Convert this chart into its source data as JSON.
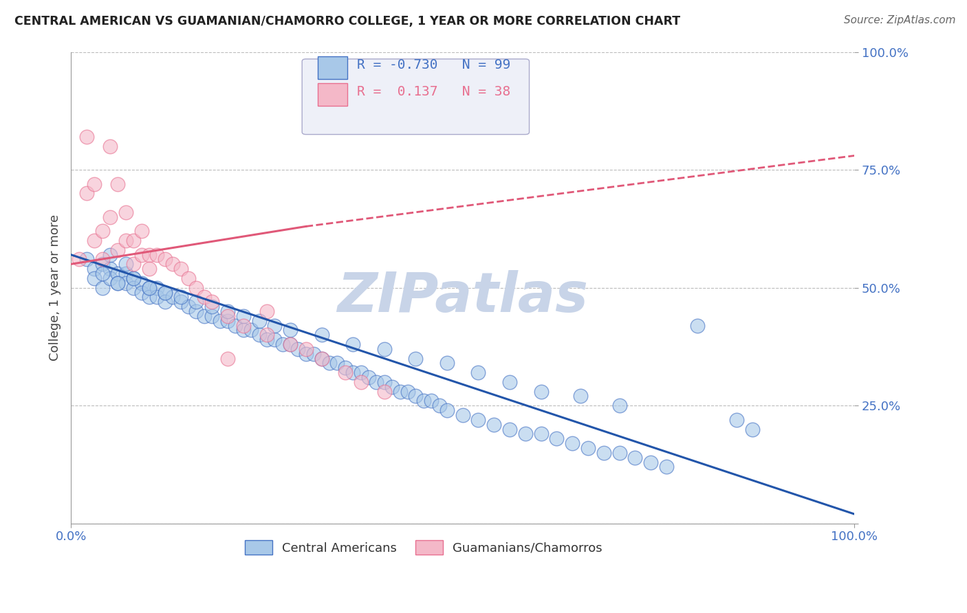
{
  "title": "CENTRAL AMERICAN VS GUAMANIAN/CHAMORRO COLLEGE, 1 YEAR OR MORE CORRELATION CHART",
  "source_text": "Source: ZipAtlas.com",
  "ylabel": "College, 1 year or more",
  "xlim": [
    0.0,
    1.0
  ],
  "ylim": [
    0.0,
    1.0
  ],
  "blue_R": -0.73,
  "blue_N": 99,
  "pink_R": 0.137,
  "pink_N": 38,
  "blue_color": "#a8c8e8",
  "pink_color": "#f4b8c8",
  "blue_edge_color": "#4472c4",
  "pink_edge_color": "#e87090",
  "blue_line_color": "#2255aa",
  "pink_line_color": "#e05878",
  "grid_color": "#bbbbbb",
  "title_color": "#222222",
  "axis_label_color": "#444444",
  "tick_label_color": "#4472c4",
  "watermark_color": "#c8d4e8",
  "legend_border_color": "#aaaacc",
  "legend_bg_color": "#eef0f8",
  "blue_trendline": [
    0.0,
    0.57,
    1.0,
    0.02
  ],
  "pink_solid_line": [
    0.0,
    0.55,
    0.3,
    0.63
  ],
  "pink_dashed_line": [
    0.3,
    0.63,
    1.0,
    0.78
  ],
  "blue_x": [
    0.02,
    0.03,
    0.03,
    0.04,
    0.04,
    0.05,
    0.05,
    0.05,
    0.06,
    0.06,
    0.07,
    0.07,
    0.07,
    0.08,
    0.08,
    0.09,
    0.09,
    0.1,
    0.1,
    0.11,
    0.11,
    0.12,
    0.12,
    0.13,
    0.14,
    0.15,
    0.16,
    0.17,
    0.18,
    0.19,
    0.2,
    0.21,
    0.22,
    0.23,
    0.24,
    0.25,
    0.26,
    0.27,
    0.28,
    0.29,
    0.3,
    0.31,
    0.32,
    0.33,
    0.34,
    0.35,
    0.36,
    0.37,
    0.38,
    0.39,
    0.4,
    0.41,
    0.42,
    0.43,
    0.44,
    0.45,
    0.46,
    0.47,
    0.48,
    0.5,
    0.52,
    0.54,
    0.56,
    0.58,
    0.6,
    0.62,
    0.64,
    0.66,
    0.68,
    0.7,
    0.72,
    0.74,
    0.76,
    0.04,
    0.06,
    0.08,
    0.1,
    0.12,
    0.14,
    0.16,
    0.18,
    0.2,
    0.22,
    0.24,
    0.26,
    0.28,
    0.32,
    0.36,
    0.4,
    0.44,
    0.48,
    0.52,
    0.56,
    0.6,
    0.65,
    0.7,
    0.8,
    0.85,
    0.87
  ],
  "blue_y": [
    0.56,
    0.54,
    0.52,
    0.55,
    0.5,
    0.54,
    0.52,
    0.57,
    0.53,
    0.51,
    0.53,
    0.51,
    0.55,
    0.52,
    0.5,
    0.51,
    0.49,
    0.5,
    0.48,
    0.5,
    0.48,
    0.49,
    0.47,
    0.48,
    0.47,
    0.46,
    0.45,
    0.44,
    0.44,
    0.43,
    0.43,
    0.42,
    0.41,
    0.41,
    0.4,
    0.39,
    0.39,
    0.38,
    0.38,
    0.37,
    0.36,
    0.36,
    0.35,
    0.34,
    0.34,
    0.33,
    0.32,
    0.32,
    0.31,
    0.3,
    0.3,
    0.29,
    0.28,
    0.28,
    0.27,
    0.26,
    0.26,
    0.25,
    0.24,
    0.23,
    0.22,
    0.21,
    0.2,
    0.19,
    0.19,
    0.18,
    0.17,
    0.16,
    0.15,
    0.15,
    0.14,
    0.13,
    0.12,
    0.53,
    0.51,
    0.52,
    0.5,
    0.49,
    0.48,
    0.47,
    0.46,
    0.45,
    0.44,
    0.43,
    0.42,
    0.41,
    0.4,
    0.38,
    0.37,
    0.35,
    0.34,
    0.32,
    0.3,
    0.28,
    0.27,
    0.25,
    0.42,
    0.22,
    0.2
  ],
  "pink_x": [
    0.01,
    0.02,
    0.02,
    0.03,
    0.03,
    0.04,
    0.04,
    0.05,
    0.05,
    0.06,
    0.06,
    0.07,
    0.07,
    0.08,
    0.08,
    0.09,
    0.09,
    0.1,
    0.1,
    0.11,
    0.12,
    0.13,
    0.14,
    0.15,
    0.16,
    0.17,
    0.18,
    0.2,
    0.22,
    0.25,
    0.28,
    0.3,
    0.32,
    0.35,
    0.37,
    0.4,
    0.25,
    0.2
  ],
  "pink_y": [
    0.56,
    0.82,
    0.7,
    0.72,
    0.6,
    0.62,
    0.56,
    0.8,
    0.65,
    0.72,
    0.58,
    0.66,
    0.6,
    0.6,
    0.55,
    0.62,
    0.57,
    0.57,
    0.54,
    0.57,
    0.56,
    0.55,
    0.54,
    0.52,
    0.5,
    0.48,
    0.47,
    0.44,
    0.42,
    0.4,
    0.38,
    0.37,
    0.35,
    0.32,
    0.3,
    0.28,
    0.45,
    0.35
  ]
}
